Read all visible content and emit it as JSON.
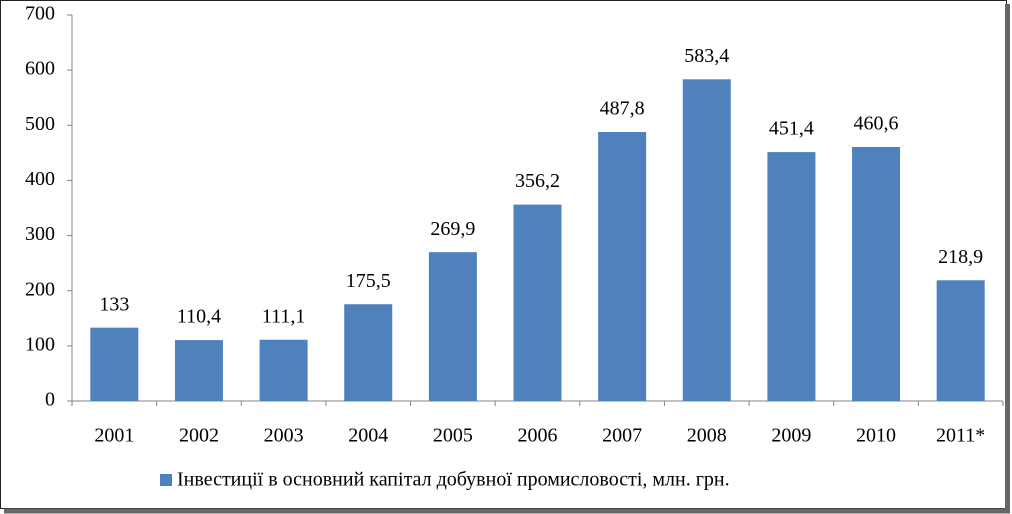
{
  "chart_data": {
    "type": "bar",
    "categories": [
      "2001",
      "2002",
      "2003",
      "2004",
      "2005",
      "2006",
      "2007",
      "2008",
      "2009",
      "2010",
      "2011*"
    ],
    "series": [
      {
        "name": "Інвестиції в основний капітал добувної промисловості, млн. грн.",
        "color": "#4f81bd",
        "values": [
          133,
          110.4,
          111.1,
          175.5,
          269.9,
          356.2,
          487.8,
          583.4,
          451.4,
          460.6,
          218.9
        ],
        "value_labels": [
          "133",
          "110,4",
          "111,1",
          "175,5",
          "269,9",
          "356,2",
          "487,8",
          "583,4",
          "451,4",
          "460,6",
          "218,9"
        ]
      }
    ],
    "ylim": [
      0,
      700
    ],
    "yticks": [
      0,
      100,
      200,
      300,
      400,
      500,
      600,
      700
    ],
    "legend": "bottom"
  }
}
